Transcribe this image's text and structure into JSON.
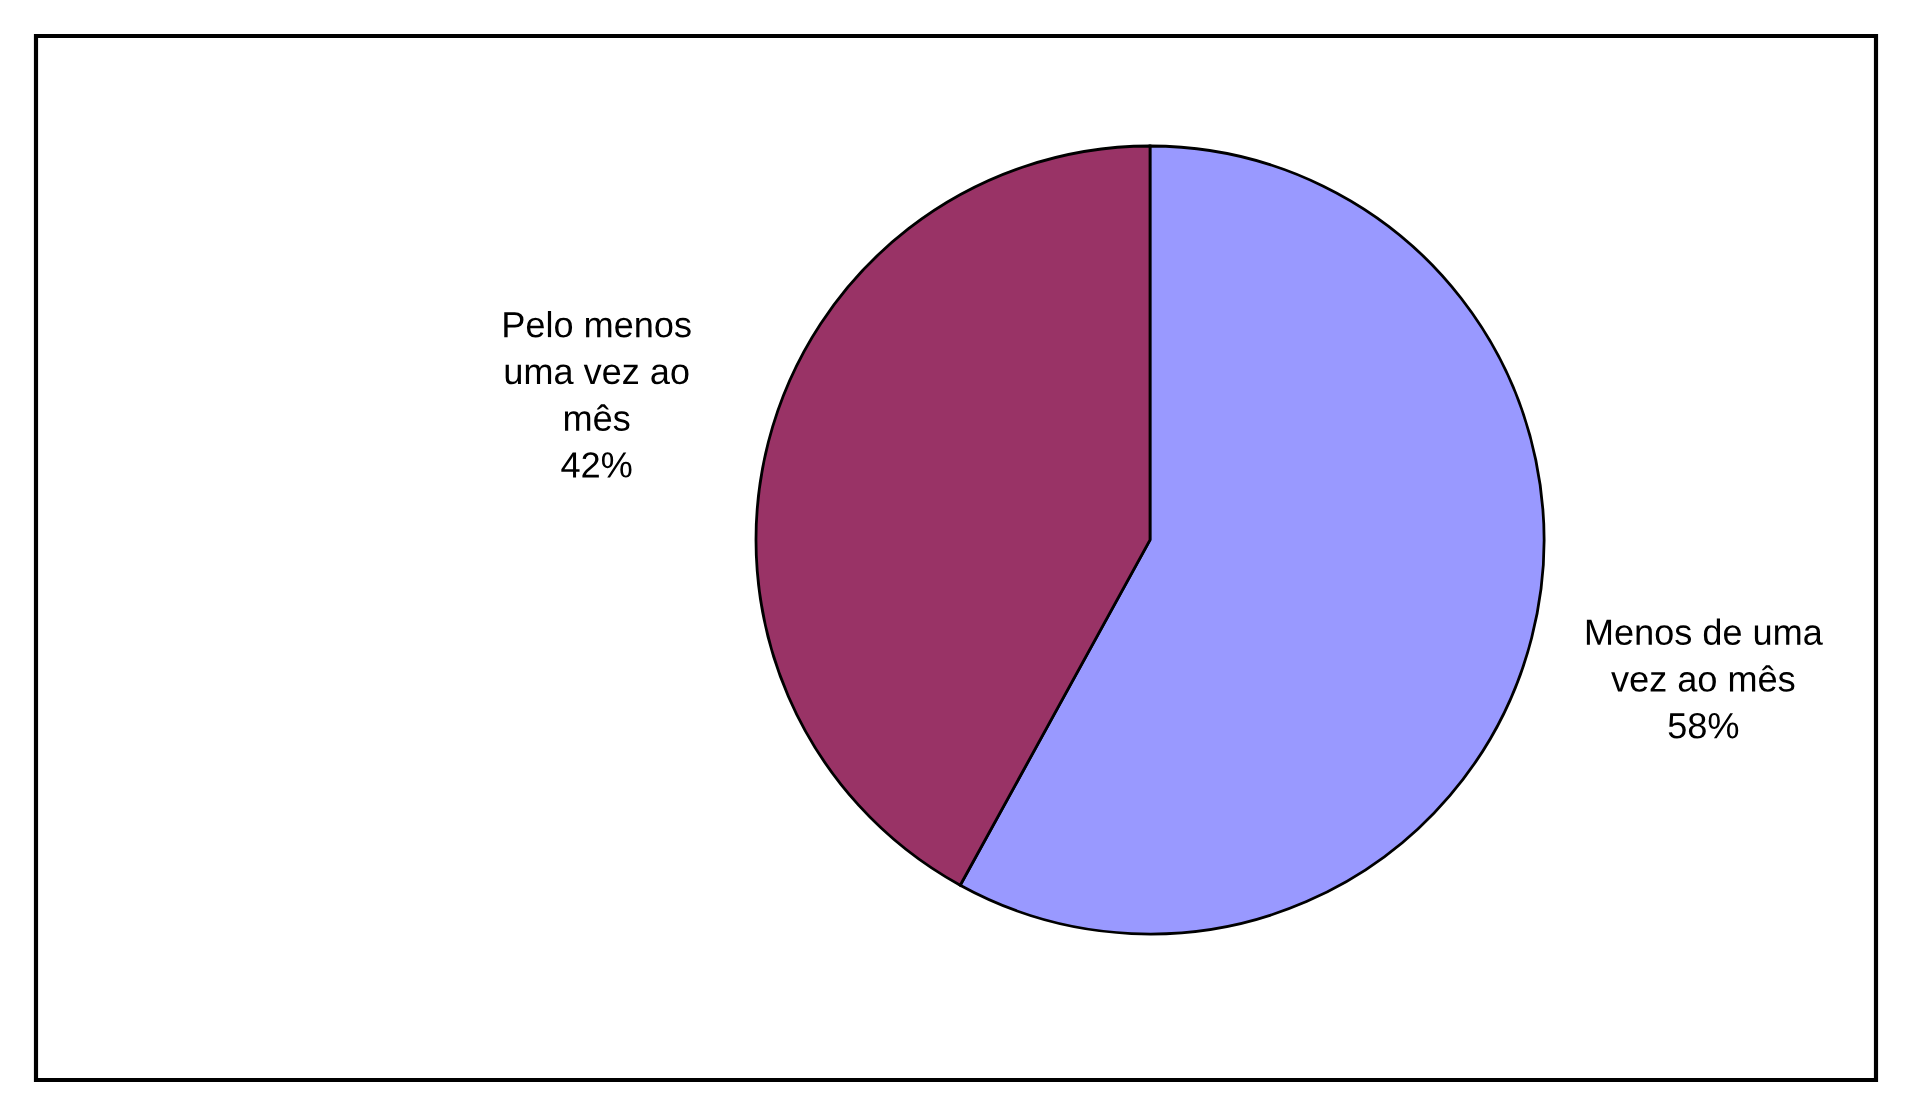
{
  "chart_data": {
    "type": "pie",
    "categories": [
      "Menos de uma\nvez ao mês",
      "Pelo menos\numa vez ao\nmês"
    ],
    "values": [
      58,
      42
    ],
    "colors": [
      "#9999ff",
      "#993366"
    ],
    "value_labels": [
      "58%",
      "42%"
    ],
    "legend": false
  }
}
